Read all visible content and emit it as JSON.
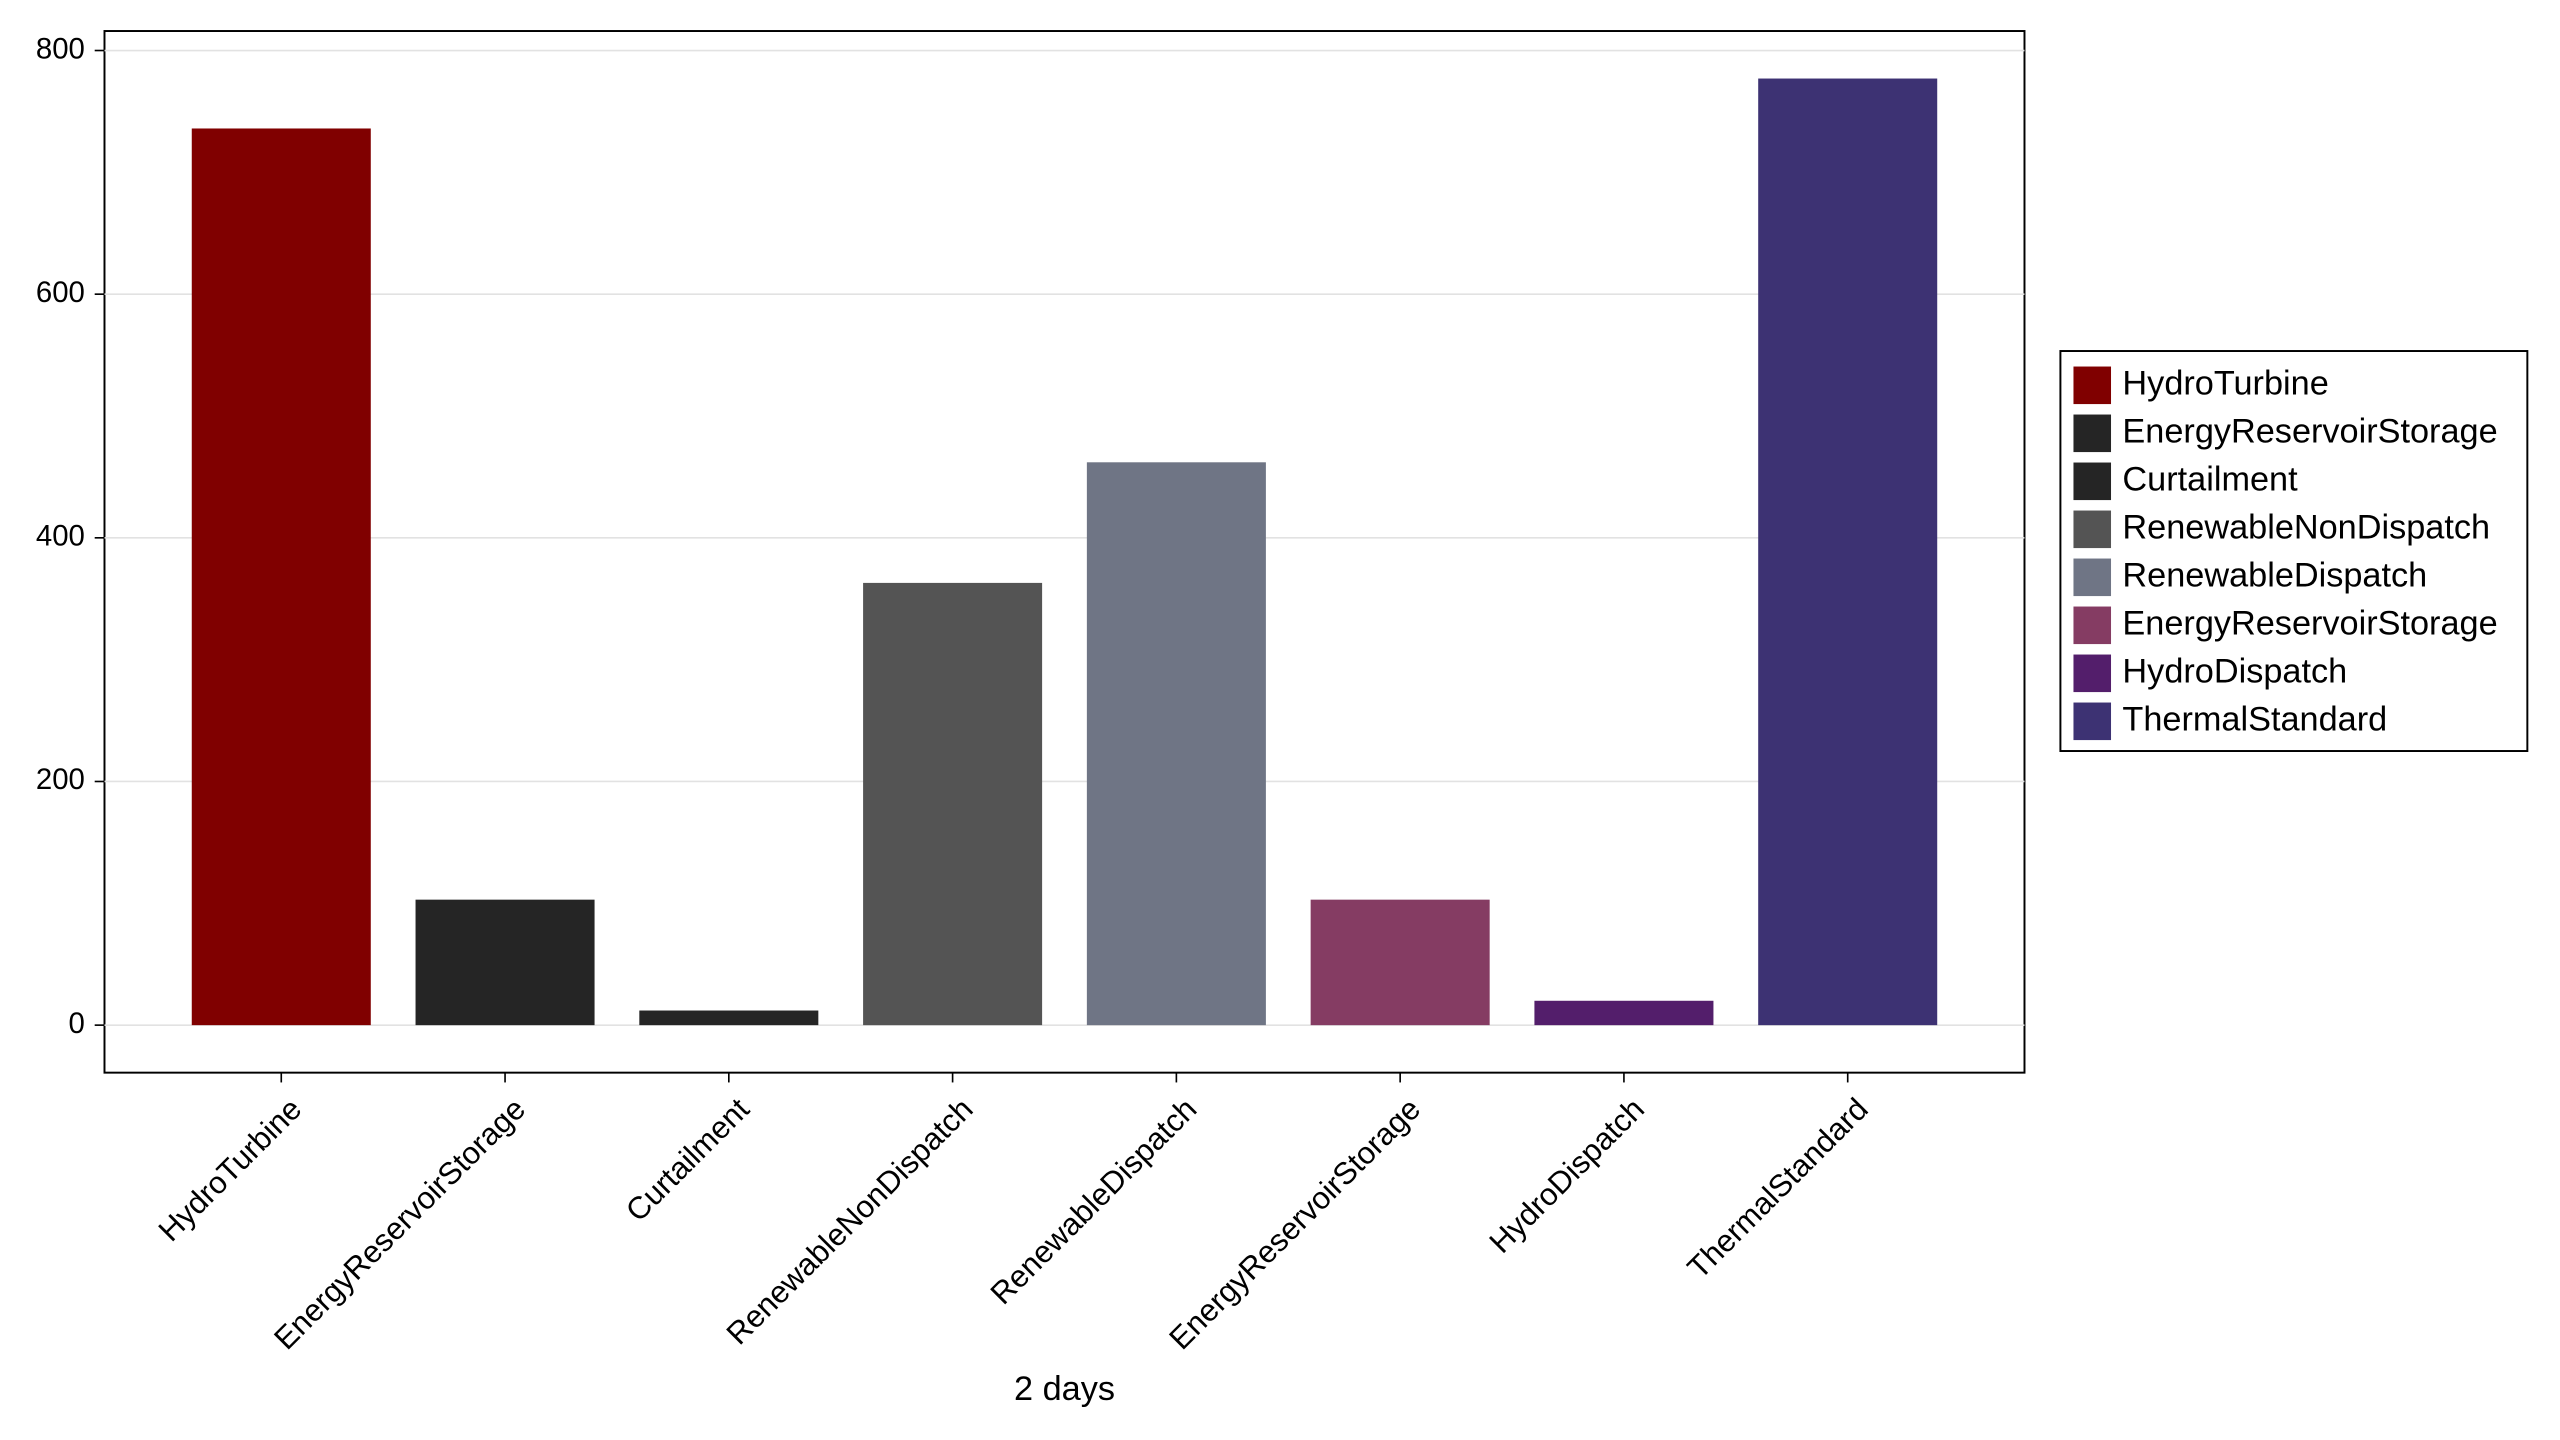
{
  "chart_data": {
    "type": "bar",
    "x_label": "2 days",
    "categories": [
      "HydroTurbine",
      "EnergyReservoirStorage",
      "Curtailment",
      "RenewableNonDispatch",
      "RenewableDispatch",
      "EnergyReservoirStorage",
      "HydroDispatch",
      "ThermalStandard"
    ],
    "values": [
      736,
      103,
      12,
      363,
      462,
      103,
      20,
      777
    ],
    "colors": [
      "#800000",
      "#252525",
      "#252525",
      "#545454",
      "#6f7585",
      "#853c63",
      "#531e6b",
      "#3d3273"
    ],
    "ylim": [
      -39,
      816
    ],
    "yticks": [
      0,
      200,
      400,
      600,
      800
    ],
    "grid": true,
    "legend": "right"
  }
}
